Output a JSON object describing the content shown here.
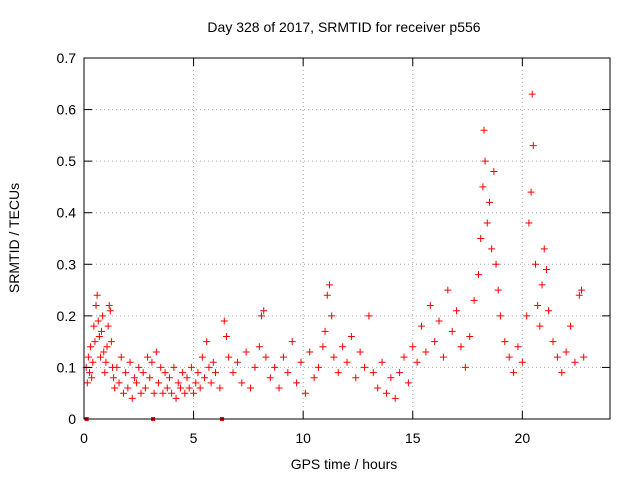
{
  "chart_data": {
    "type": "scatter",
    "title": "Day 328 of 2017, SRMTID for receiver p556",
    "xlabel": "GPS time / hours",
    "ylabel": "SRMTID / TECUs",
    "xlim": [
      0,
      24
    ],
    "ylim": [
      0,
      0.7
    ],
    "xticks": [
      0,
      5,
      10,
      15,
      20
    ],
    "yticks": [
      0,
      0.1,
      0.2,
      0.3,
      0.4,
      0.5,
      0.6,
      0.7
    ],
    "ytick_labels": [
      "0",
      "0.1",
      "0.2",
      "0.3",
      "0.4",
      "0.5",
      "0.6",
      "0.7"
    ],
    "grid": true,
    "series": [
      {
        "name": "SRMTID",
        "color": "#ff0000",
        "marker": "+",
        "points": [
          [
            0.1,
            0.1
          ],
          [
            0.15,
            0.07
          ],
          [
            0.2,
            0.12
          ],
          [
            0.25,
            0.09
          ],
          [
            0.3,
            0.14
          ],
          [
            0.35,
            0.08
          ],
          [
            0.4,
            0.11
          ],
          [
            0.45,
            0.18
          ],
          [
            0.5,
            0.15
          ],
          [
            0.55,
            0.22
          ],
          [
            0.6,
            0.24
          ],
          [
            0.65,
            0.19
          ],
          [
            0.7,
            0.16
          ],
          [
            0.75,
            0.12
          ],
          [
            0.8,
            0.17
          ],
          [
            0.85,
            0.2
          ],
          [
            0.9,
            0.13
          ],
          [
            0.95,
            0.09
          ],
          [
            1.0,
            0.11
          ],
          [
            1.05,
            0.14
          ],
          [
            1.1,
            0.18
          ],
          [
            1.15,
            0.22
          ],
          [
            1.2,
            0.21
          ],
          [
            1.25,
            0.15
          ],
          [
            1.3,
            0.1
          ],
          [
            1.35,
            0.08
          ],
          [
            1.4,
            0.06
          ],
          [
            1.5,
            0.1
          ],
          [
            1.6,
            0.07
          ],
          [
            1.7,
            0.12
          ],
          [
            1.8,
            0.05
          ],
          [
            1.9,
            0.09
          ],
          [
            2.0,
            0.06
          ],
          [
            2.1,
            0.11
          ],
          [
            2.2,
            0.04
          ],
          [
            2.3,
            0.08
          ],
          [
            2.4,
            0.07
          ],
          [
            2.5,
            0.1
          ],
          [
            2.6,
            0.05
          ],
          [
            2.7,
            0.09
          ],
          [
            2.8,
            0.06
          ],
          [
            2.9,
            0.12
          ],
          [
            3.0,
            0.08
          ],
          [
            3.1,
            0.11
          ],
          [
            3.2,
            0.05
          ],
          [
            3.3,
            0.13
          ],
          [
            3.4,
            0.07
          ],
          [
            3.5,
            0.1
          ],
          [
            3.6,
            0.05
          ],
          [
            3.7,
            0.09
          ],
          [
            3.8,
            0.06
          ],
          [
            3.9,
            0.08
          ],
          [
            4.0,
            0.05
          ],
          [
            4.1,
            0.1
          ],
          [
            4.2,
            0.04
          ],
          [
            4.3,
            0.07
          ],
          [
            4.4,
            0.06
          ],
          [
            4.5,
            0.09
          ],
          [
            4.6,
            0.05
          ],
          [
            4.7,
            0.08
          ],
          [
            4.8,
            0.06
          ],
          [
            4.9,
            0.1
          ],
          [
            5.0,
            0.05
          ],
          [
            5.1,
            0.07
          ],
          [
            5.2,
            0.09
          ],
          [
            5.3,
            0.06
          ],
          [
            5.4,
            0.12
          ],
          [
            5.5,
            0.08
          ],
          [
            5.6,
            0.15
          ],
          [
            5.7,
            0.1
          ],
          [
            5.8,
            0.07
          ],
          [
            5.9,
            0.11
          ],
          [
            6.0,
            0.09
          ],
          [
            6.2,
            0.06
          ],
          [
            6.4,
            0.19
          ],
          [
            6.5,
            0.16
          ],
          [
            6.6,
            0.12
          ],
          [
            6.8,
            0.09
          ],
          [
            7.0,
            0.11
          ],
          [
            7.2,
            0.07
          ],
          [
            7.4,
            0.13
          ],
          [
            7.6,
            0.06
          ],
          [
            7.8,
            0.1
          ],
          [
            8.0,
            0.14
          ],
          [
            8.1,
            0.2
          ],
          [
            8.2,
            0.21
          ],
          [
            8.3,
            0.12
          ],
          [
            8.5,
            0.08
          ],
          [
            8.7,
            0.1
          ],
          [
            8.9,
            0.06
          ],
          [
            9.1,
            0.12
          ],
          [
            9.3,
            0.09
          ],
          [
            9.5,
            0.15
          ],
          [
            9.7,
            0.07
          ],
          [
            9.9,
            0.11
          ],
          [
            10.1,
            0.05
          ],
          [
            10.3,
            0.13
          ],
          [
            10.5,
            0.08
          ],
          [
            10.7,
            0.1
          ],
          [
            10.9,
            0.14
          ],
          [
            11.0,
            0.17
          ],
          [
            11.1,
            0.24
          ],
          [
            11.2,
            0.26
          ],
          [
            11.3,
            0.2
          ],
          [
            11.4,
            0.12
          ],
          [
            11.6,
            0.09
          ],
          [
            11.8,
            0.14
          ],
          [
            12.0,
            0.11
          ],
          [
            12.2,
            0.16
          ],
          [
            12.4,
            0.08
          ],
          [
            12.6,
            0.13
          ],
          [
            12.8,
            0.1
          ],
          [
            13.0,
            0.2
          ],
          [
            13.2,
            0.09
          ],
          [
            13.4,
            0.06
          ],
          [
            13.6,
            0.11
          ],
          [
            13.8,
            0.05
          ],
          [
            14.0,
            0.08
          ],
          [
            14.2,
            0.04
          ],
          [
            14.4,
            0.09
          ],
          [
            14.6,
            0.12
          ],
          [
            14.8,
            0.07
          ],
          [
            15.0,
            0.14
          ],
          [
            15.2,
            0.11
          ],
          [
            15.4,
            0.18
          ],
          [
            15.6,
            0.13
          ],
          [
            15.8,
            0.22
          ],
          [
            16.0,
            0.15
          ],
          [
            16.2,
            0.19
          ],
          [
            16.4,
            0.12
          ],
          [
            16.6,
            0.25
          ],
          [
            16.8,
            0.17
          ],
          [
            17.0,
            0.21
          ],
          [
            17.2,
            0.14
          ],
          [
            17.4,
            0.1
          ],
          [
            17.6,
            0.16
          ],
          [
            17.8,
            0.23
          ],
          [
            18.0,
            0.28
          ],
          [
            18.1,
            0.35
          ],
          [
            18.2,
            0.45
          ],
          [
            18.25,
            0.56
          ],
          [
            18.3,
            0.5
          ],
          [
            18.4,
            0.38
          ],
          [
            18.5,
            0.42
          ],
          [
            18.6,
            0.33
          ],
          [
            18.7,
            0.48
          ],
          [
            18.8,
            0.3
          ],
          [
            18.9,
            0.25
          ],
          [
            19.0,
            0.2
          ],
          [
            19.2,
            0.15
          ],
          [
            19.4,
            0.12
          ],
          [
            19.6,
            0.09
          ],
          [
            19.8,
            0.14
          ],
          [
            20.0,
            0.11
          ],
          [
            20.2,
            0.2
          ],
          [
            20.3,
            0.38
          ],
          [
            20.4,
            0.44
          ],
          [
            20.45,
            0.63
          ],
          [
            20.5,
            0.53
          ],
          [
            20.6,
            0.3
          ],
          [
            20.7,
            0.22
          ],
          [
            20.8,
            0.18
          ],
          [
            20.9,
            0.26
          ],
          [
            21.0,
            0.33
          ],
          [
            21.1,
            0.29
          ],
          [
            21.2,
            0.21
          ],
          [
            21.4,
            0.15
          ],
          [
            21.6,
            0.12
          ],
          [
            21.8,
            0.09
          ],
          [
            22.0,
            0.13
          ],
          [
            22.2,
            0.18
          ],
          [
            22.4,
            0.11
          ],
          [
            22.6,
            0.24
          ],
          [
            22.7,
            0.25
          ],
          [
            22.8,
            0.12
          ]
        ],
        "zero_points": [
          0.12,
          3.15,
          6.3
        ]
      }
    ]
  }
}
